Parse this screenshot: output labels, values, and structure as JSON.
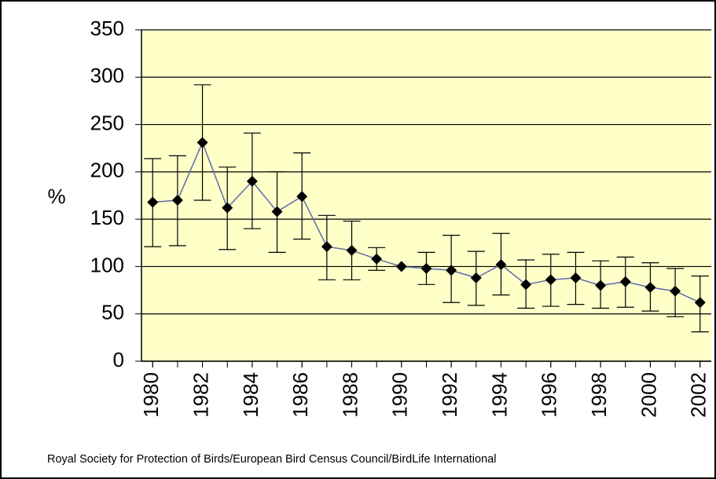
{
  "chart_data": {
    "type": "line",
    "y_label": "%",
    "source": "Royal Society for Protection of Birds/European Bird Census Council/BirdLife International",
    "x": [
      1980,
      1981,
      1982,
      1983,
      1984,
      1985,
      1986,
      1987,
      1988,
      1989,
      1990,
      1991,
      1992,
      1993,
      1994,
      1995,
      1996,
      1997,
      1998,
      1999,
      2000,
      2001,
      2002
    ],
    "values": [
      168,
      170,
      231,
      162,
      190,
      158,
      174,
      121,
      117,
      108,
      100,
      98,
      96,
      88,
      102,
      81,
      86,
      88,
      80,
      84,
      78,
      74,
      62
    ],
    "low": [
      121,
      122,
      170,
      118,
      140,
      115,
      129,
      86,
      86,
      96,
      100,
      81,
      62,
      59,
      70,
      56,
      58,
      60,
      56,
      57,
      53,
      47,
      31
    ],
    "high": [
      214,
      217,
      292,
      205,
      241,
      200,
      220,
      154,
      148,
      120,
      100,
      115,
      133,
      116,
      135,
      107,
      113,
      115,
      106,
      110,
      104,
      98,
      90
    ],
    "color": "#5b6bb0",
    "marker_color": "#000000",
    "background": "#ffffc8",
    "xlim": [
      1979.55,
      2002.45
    ],
    "xticks": [
      1980,
      1982,
      1984,
      1986,
      1988,
      1990,
      1992,
      1994,
      1996,
      1998,
      2000,
      2002
    ],
    "ylim": [
      0,
      350
    ],
    "yticks": [
      0,
      50,
      100,
      150,
      200,
      250,
      300,
      350
    ],
    "grid": true
  }
}
